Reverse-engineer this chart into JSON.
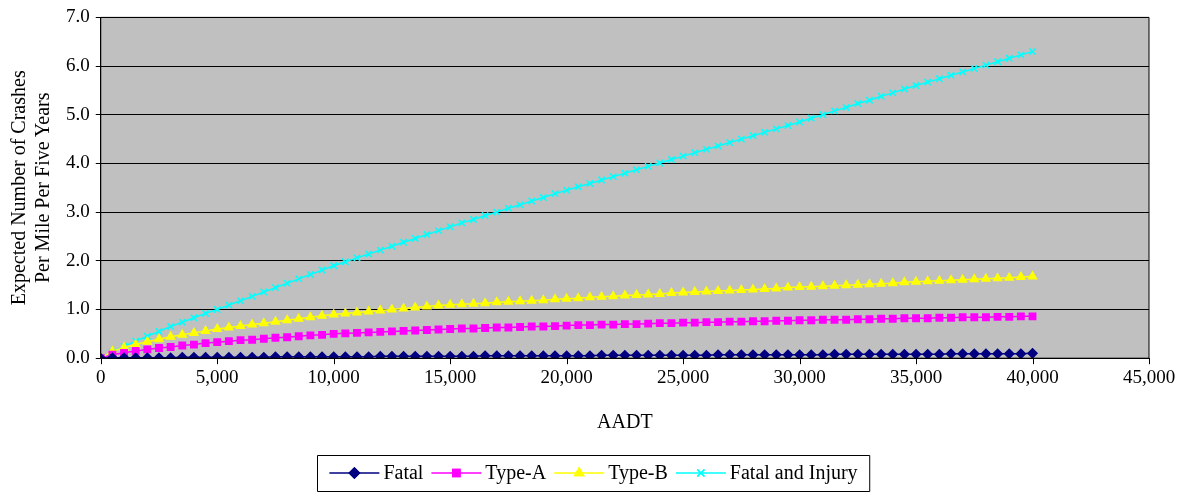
{
  "chart_data": {
    "type": "line",
    "xlabel": "AADT",
    "ylabel": "Expected Number of Crashes\nPer Mile Per Five Years",
    "x": [
      0,
      500,
      1000,
      1500,
      2000,
      2500,
      3000,
      3500,
      4000,
      4500,
      5000,
      5500,
      6000,
      6500,
      7000,
      7500,
      8000,
      8500,
      9000,
      9500,
      10000,
      10500,
      11000,
      11500,
      12000,
      12500,
      13000,
      13500,
      14000,
      14500,
      15000,
      15500,
      16000,
      16500,
      17000,
      17500,
      18000,
      18500,
      19000,
      19500,
      20000,
      20500,
      21000,
      21500,
      22000,
      22500,
      23000,
      23500,
      24000,
      24500,
      25000,
      25500,
      26000,
      26500,
      27000,
      27500,
      28000,
      28500,
      29000,
      29500,
      30000,
      30500,
      31000,
      31500,
      32000,
      32500,
      33000,
      33500,
      34000,
      34500,
      35000,
      35500,
      36000,
      36500,
      37000,
      37500,
      38000,
      38500,
      39000,
      39500,
      40000
    ],
    "series": [
      {
        "name": "Fatal",
        "color": "#000080",
        "marker": "diamond",
        "values": [
          0,
          0.01,
          0.01,
          0.01,
          0.01,
          0.01,
          0.01,
          0.02,
          0.02,
          0.02,
          0.02,
          0.02,
          0.02,
          0.02,
          0.02,
          0.03,
          0.03,
          0.03,
          0.03,
          0.03,
          0.03,
          0.03,
          0.03,
          0.03,
          0.04,
          0.04,
          0.04,
          0.04,
          0.04,
          0.04,
          0.04,
          0.04,
          0.04,
          0.05,
          0.05,
          0.05,
          0.05,
          0.05,
          0.05,
          0.05,
          0.05,
          0.05,
          0.05,
          0.06,
          0.06,
          0.06,
          0.06,
          0.06,
          0.06,
          0.06,
          0.06,
          0.06,
          0.06,
          0.07,
          0.07,
          0.07,
          0.07,
          0.07,
          0.07,
          0.07,
          0.07,
          0.07,
          0.07,
          0.08,
          0.08,
          0.08,
          0.08,
          0.08,
          0.08,
          0.08,
          0.08,
          0.08,
          0.08,
          0.09,
          0.09,
          0.09,
          0.09,
          0.09,
          0.09,
          0.09,
          0.1
        ]
      },
      {
        "name": "Type-A",
        "color": "#ff00ff",
        "marker": "square",
        "values": [
          0,
          0.07,
          0.11,
          0.15,
          0.18,
          0.21,
          0.23,
          0.26,
          0.28,
          0.31,
          0.33,
          0.35,
          0.37,
          0.38,
          0.4,
          0.42,
          0.43,
          0.45,
          0.47,
          0.48,
          0.5,
          0.51,
          0.52,
          0.53,
          0.54,
          0.55,
          0.56,
          0.57,
          0.58,
          0.59,
          0.6,
          0.61,
          0.61,
          0.62,
          0.63,
          0.63,
          0.64,
          0.65,
          0.65,
          0.66,
          0.67,
          0.68,
          0.68,
          0.69,
          0.69,
          0.7,
          0.7,
          0.71,
          0.72,
          0.72,
          0.73,
          0.73,
          0.74,
          0.74,
          0.75,
          0.75,
          0.76,
          0.76,
          0.77,
          0.77,
          0.78,
          0.78,
          0.79,
          0.79,
          0.79,
          0.8,
          0.8,
          0.81,
          0.81,
          0.82,
          0.82,
          0.82,
          0.83,
          0.83,
          0.84,
          0.84,
          0.84,
          0.85,
          0.85,
          0.86,
          0.86
        ]
      },
      {
        "name": "Type-B",
        "color": "#ffff00",
        "marker": "triangle",
        "values": [
          0,
          0.14,
          0.22,
          0.28,
          0.34,
          0.39,
          0.44,
          0.48,
          0.52,
          0.56,
          0.6,
          0.63,
          0.66,
          0.69,
          0.72,
          0.75,
          0.78,
          0.81,
          0.84,
          0.87,
          0.9,
          0.92,
          0.94,
          0.96,
          0.98,
          1,
          1.02,
          1.04,
          1.06,
          1.08,
          1.1,
          1.11,
          1.12,
          1.13,
          1.15,
          1.16,
          1.17,
          1.18,
          1.19,
          1.21,
          1.22,
          1.23,
          1.25,
          1.26,
          1.27,
          1.29,
          1.3,
          1.31,
          1.32,
          1.34,
          1.35,
          1.36,
          1.37,
          1.38,
          1.39,
          1.4,
          1.41,
          1.42,
          1.43,
          1.45,
          1.46,
          1.47,
          1.48,
          1.49,
          1.5,
          1.51,
          1.52,
          1.53,
          1.54,
          1.56,
          1.57,
          1.58,
          1.59,
          1.6,
          1.61,
          1.62,
          1.63,
          1.64,
          1.65,
          1.67,
          1.68
        ]
      },
      {
        "name": "Fatal and Injury",
        "color": "#00ffff",
        "marker": "cross",
        "values": [
          0,
          0.13,
          0.24,
          0.35,
          0.45,
          0.55,
          0.65,
          0.74,
          0.83,
          0.92,
          1,
          1.09,
          1.18,
          1.27,
          1.36,
          1.45,
          1.54,
          1.63,
          1.72,
          1.81,
          1.9,
          1.98,
          2.06,
          2.14,
          2.22,
          2.3,
          2.38,
          2.46,
          2.54,
          2.62,
          2.7,
          2.78,
          2.85,
          2.93,
          3,
          3.08,
          3.15,
          3.23,
          3.3,
          3.38,
          3.45,
          3.52,
          3.59,
          3.66,
          3.73,
          3.8,
          3.87,
          3.94,
          4.01,
          4.08,
          4.15,
          4.22,
          4.29,
          4.36,
          4.43,
          4.5,
          4.57,
          4.64,
          4.71,
          4.78,
          4.85,
          4.93,
          5,
          5.08,
          5.15,
          5.23,
          5.3,
          5.38,
          5.45,
          5.53,
          5.6,
          5.67,
          5.74,
          5.81,
          5.88,
          5.95,
          6.02,
          6.09,
          6.16,
          6.23,
          6.3
        ]
      }
    ],
    "xlim": [
      0,
      45000
    ],
    "xticks": [
      0,
      {
        "value": 5000,
        "label": "5,000"
      },
      {
        "value": 10000,
        "label": "10,000"
      },
      {
        "value": 15000,
        "label": "15,000"
      },
      {
        "value": 20000,
        "label": "20,000"
      },
      {
        "value": 25000,
        "label": "25,000"
      },
      {
        "value": 30000,
        "label": "30,000"
      },
      {
        "value": 35000,
        "label": "35,000"
      },
      {
        "value": 40000,
        "label": "40,000"
      },
      {
        "value": 45000,
        "label": "45,000"
      }
    ],
    "ylim": [
      0,
      7
    ],
    "yticks": [
      {
        "value": 0,
        "label": "0.0"
      },
      {
        "value": 1,
        "label": "1.0"
      },
      {
        "value": 2,
        "label": "2.0"
      },
      {
        "value": 3,
        "label": "3.0"
      },
      {
        "value": 4,
        "label": "4.0"
      },
      {
        "value": 5,
        "label": "5.0"
      },
      {
        "value": 6,
        "label": "6.0"
      },
      {
        "value": 7,
        "label": "7.0"
      }
    ],
    "grid": "y",
    "legend": "bottom",
    "line_style": "solid"
  }
}
